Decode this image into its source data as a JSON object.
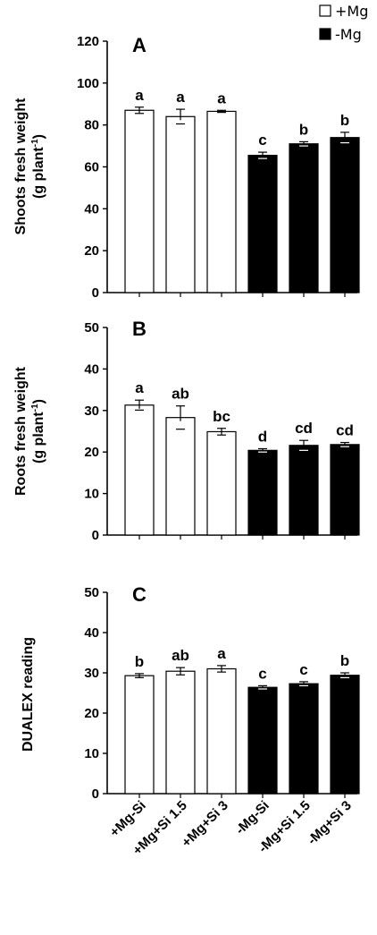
{
  "legend": [
    {
      "label": "+Mg",
      "color": "#ffffff"
    },
    {
      "label": "-Mg",
      "color": "#000000"
    }
  ],
  "chart_data": [
    {
      "type": "bar",
      "panel": "A",
      "categories": [
        "+Mg-Si",
        "+Mg+Si 1.5",
        "+Mg+Si 3",
        "-Mg-Si",
        "-Mg+Si 1.5",
        "-Mg+Si 3"
      ],
      "values": [
        87,
        84,
        86.5,
        65.5,
        71,
        74
      ],
      "errors": [
        1.5,
        3.5,
        0.5,
        1.5,
        1,
        2.5
      ],
      "letters": [
        "a",
        "a",
        "a",
        "c",
        "b",
        "b"
      ],
      "fills": [
        "#ffffff",
        "#ffffff",
        "#ffffff",
        "#000000",
        "#000000",
        "#000000"
      ],
      "ylabel_line1": "Shoots fresh weight",
      "ylabel_line2_pre": "(g plant",
      "ylabel_line2_sup": "-1",
      "ylabel_line2_post": ")",
      "ylim": [
        0,
        120
      ],
      "yticks": [
        "0",
        "20",
        "40",
        "60",
        "80",
        "100",
        "120"
      ]
    },
    {
      "type": "bar",
      "panel": "B",
      "categories": [
        "+Mg-Si",
        "+Mg+Si 1.5",
        "+Mg+Si 3",
        "-Mg-Si",
        "-Mg+Si 1.5",
        "-Mg+Si 3"
      ],
      "values": [
        31.3,
        28.3,
        24.9,
        20.4,
        21.6,
        21.8
      ],
      "errors": [
        1.2,
        2.8,
        0.8,
        0.4,
        1.2,
        0.5
      ],
      "letters": [
        "a",
        "ab",
        "bc",
        "d",
        "cd",
        "cd"
      ],
      "fills": [
        "#ffffff",
        "#ffffff",
        "#ffffff",
        "#000000",
        "#000000",
        "#000000"
      ],
      "ylabel_line1": "Roots fresh weight",
      "ylabel_line2_pre": "(g plant",
      "ylabel_line2_sup": "-1",
      "ylabel_line2_post": ")",
      "ylim": [
        0,
        50
      ],
      "yticks": [
        "0",
        "10",
        "20",
        "30",
        "40",
        "50"
      ]
    },
    {
      "type": "bar",
      "panel": "C",
      "categories": [
        "+Mg-Si",
        "+Mg+Si 1.5",
        "+Mg+Si 3",
        "-Mg-Si",
        "-Mg+Si 1.5",
        "-Mg+Si 3"
      ],
      "values": [
        29.3,
        30.4,
        31.0,
        26.4,
        27.3,
        29.4
      ],
      "errors": [
        0.5,
        0.9,
        0.8,
        0.4,
        0.5,
        0.6
      ],
      "letters": [
        "b",
        "ab",
        "a",
        "c",
        "c",
        "b"
      ],
      "fills": [
        "#ffffff",
        "#ffffff",
        "#ffffff",
        "#000000",
        "#000000",
        "#000000"
      ],
      "ylabel_line1": "DUALEX reading",
      "ylim": [
        0,
        50
      ],
      "yticks": [
        "0",
        "10",
        "20",
        "30",
        "40",
        "50"
      ],
      "xlabels": [
        "+Mg-Si",
        "+Mg+Si 1.5",
        "+Mg+Si 3",
        "-Mg-Si",
        "-Mg+Si 1.5",
        "-Mg+Si 3"
      ]
    }
  ]
}
